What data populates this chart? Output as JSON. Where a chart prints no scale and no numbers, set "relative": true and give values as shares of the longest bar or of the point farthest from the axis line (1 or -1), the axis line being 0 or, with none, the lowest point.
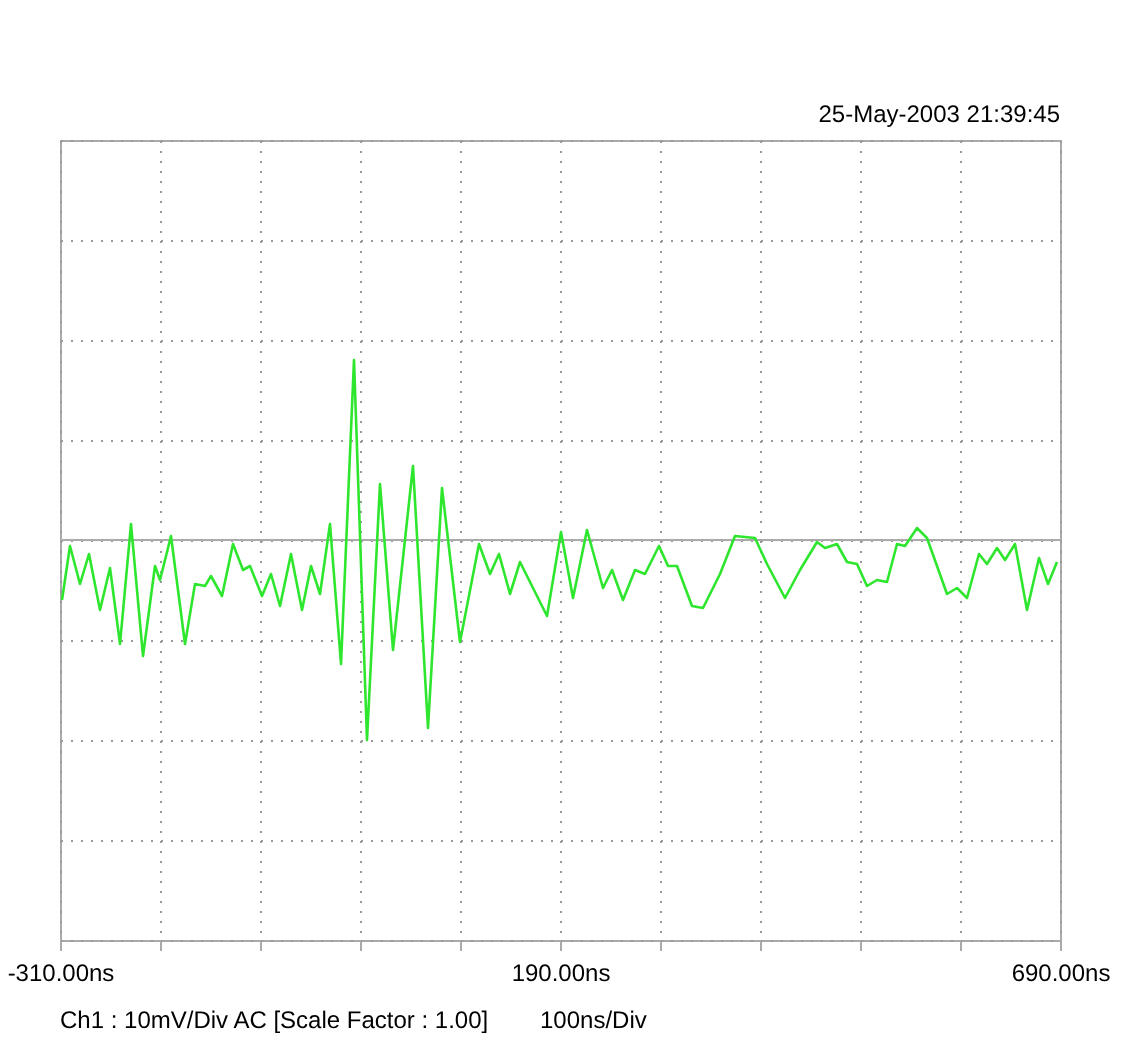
{
  "chart_data": {
    "type": "line",
    "relative": true,
    "annotations": [
      "25-May-2003 21:39:45",
      "Ch1 : 10mV/Div  AC  [Scale Factor : 1.00]",
      "100ns/Div"
    ],
    "xlim": [
      -310,
      690
    ],
    "xticks": [
      {
        "value": -310,
        "label": "-310.00ns"
      },
      {
        "value": -210,
        "label": null
      },
      {
        "value": -110,
        "label": null
      },
      {
        "value": -10,
        "label": null
      },
      {
        "value": 90,
        "label": null
      },
      {
        "value": 190,
        "label": "190.00ns"
      },
      {
        "value": 290,
        "label": null
      },
      {
        "value": 390,
        "label": null
      },
      {
        "value": 490,
        "label": null
      },
      {
        "value": 590,
        "label": null
      },
      {
        "value": 690,
        "label": "690.00ns"
      }
    ],
    "tick_labels": "x",
    "grid": true,
    "line_style": "solid",
    "marker": "none",
    "series": [
      {
        "color": "#2ee62e",
        "x": [
          -308,
          -300,
          -290,
          -281,
          -270,
          -260,
          -250,
          -239,
          -227,
          -215,
          -210,
          -199,
          -185,
          -175,
          -165,
          -159,
          -148,
          -137,
          -127,
          -120,
          -108,
          -99,
          -90,
          -79,
          -68,
          -59,
          -50,
          -40,
          -29,
          -16,
          -3,
          10,
          23,
          43,
          58,
          72,
          90,
          109,
          120,
          129,
          140,
          150,
          177,
          191,
          203,
          217,
          233,
          242,
          253,
          265,
          275,
          289,
          298,
          307,
          322,
          333,
          350,
          365,
          385,
          397,
          415,
          430,
          447,
          455,
          467,
          477,
          487,
          497,
          507,
          517,
          527,
          535,
          547,
          557,
          577,
          587,
          597,
          609,
          617,
          627,
          635,
          645,
          657,
          669,
          678,
          687
        ],
        "values": [
          -0.3,
          -0.03,
          -0.22,
          -0.07,
          -0.35,
          -0.14,
          -0.52,
          0.08,
          -0.58,
          -0.13,
          -0.2,
          0.02,
          -0.52,
          -0.22,
          -0.23,
          -0.18,
          -0.28,
          -0.02,
          -0.15,
          -0.13,
          -0.28,
          -0.17,
          -0.33,
          -0.07,
          -0.35,
          -0.13,
          -0.27,
          0.08,
          -0.62,
          0.9,
          -1.0,
          0.28,
          -0.55,
          0.37,
          -0.94,
          0.26,
          -0.51,
          -0.02,
          -0.17,
          -0.07,
          -0.27,
          -0.11,
          -0.38,
          0.04,
          -0.29,
          0.05,
          -0.24,
          -0.15,
          -0.3,
          -0.15,
          -0.17,
          -0.03,
          -0.13,
          -0.13,
          -0.33,
          -0.34,
          -0.17,
          0.02,
          0.01,
          -0.12,
          -0.29,
          -0.15,
          -0.01,
          -0.04,
          -0.02,
          -0.11,
          -0.12,
          -0.23,
          -0.2,
          -0.21,
          -0.02,
          -0.03,
          0.06,
          0.01,
          -0.27,
          -0.24,
          -0.29,
          -0.07,
          -0.12,
          -0.04,
          -0.1,
          -0.02,
          -0.35,
          -0.09,
          -0.22,
          -0.11
        ]
      }
    ]
  }
}
